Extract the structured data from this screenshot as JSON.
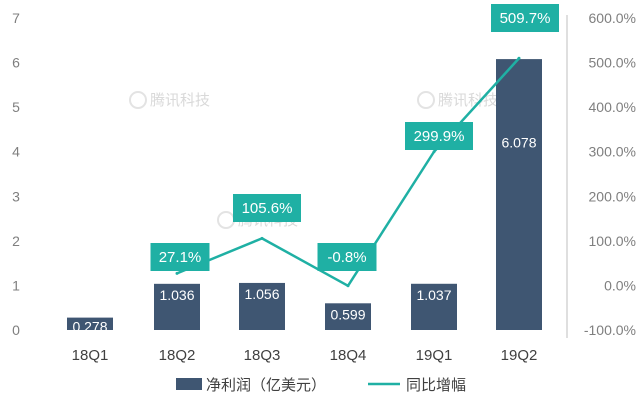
{
  "chart_data": {
    "type": "bar",
    "categories": [
      "18Q1",
      "18Q2",
      "18Q3",
      "18Q4",
      "19Q1",
      "19Q2"
    ],
    "series": [
      {
        "name": "净利润（亿美元）",
        "type": "bar",
        "axis": "left",
        "values": [
          0.278,
          1.036,
          1.056,
          0.599,
          1.037,
          6.078
        ],
        "labels": [
          "0.278",
          "1.036",
          "1.056",
          "0.599",
          "1.037",
          "6.078"
        ],
        "color": "#3f5672"
      },
      {
        "name": "同比增幅",
        "type": "line",
        "axis": "right",
        "values": [
          null,
          27.1,
          105.6,
          -0.8,
          299.9,
          509.7
        ],
        "labels": [
          "",
          "27.1%",
          "105.6%",
          "-0.8%",
          "299.9%",
          "509.7%"
        ],
        "color": "#1fb0a4"
      }
    ],
    "y_left": {
      "ylim": [
        0,
        7
      ],
      "ticks": [
        "0",
        "1",
        "2",
        "3",
        "4",
        "5",
        "6",
        "7"
      ]
    },
    "y_right": {
      "ylim": [
        -100,
        600
      ],
      "ticks": [
        "-100.0%",
        "0.0%",
        "100.0%",
        "200.0%",
        "300.0%",
        "400.0%",
        "500.0%",
        "600.0%"
      ]
    },
    "legend_position": "bottom",
    "grid": false
  },
  "watermark": "腾讯科技"
}
